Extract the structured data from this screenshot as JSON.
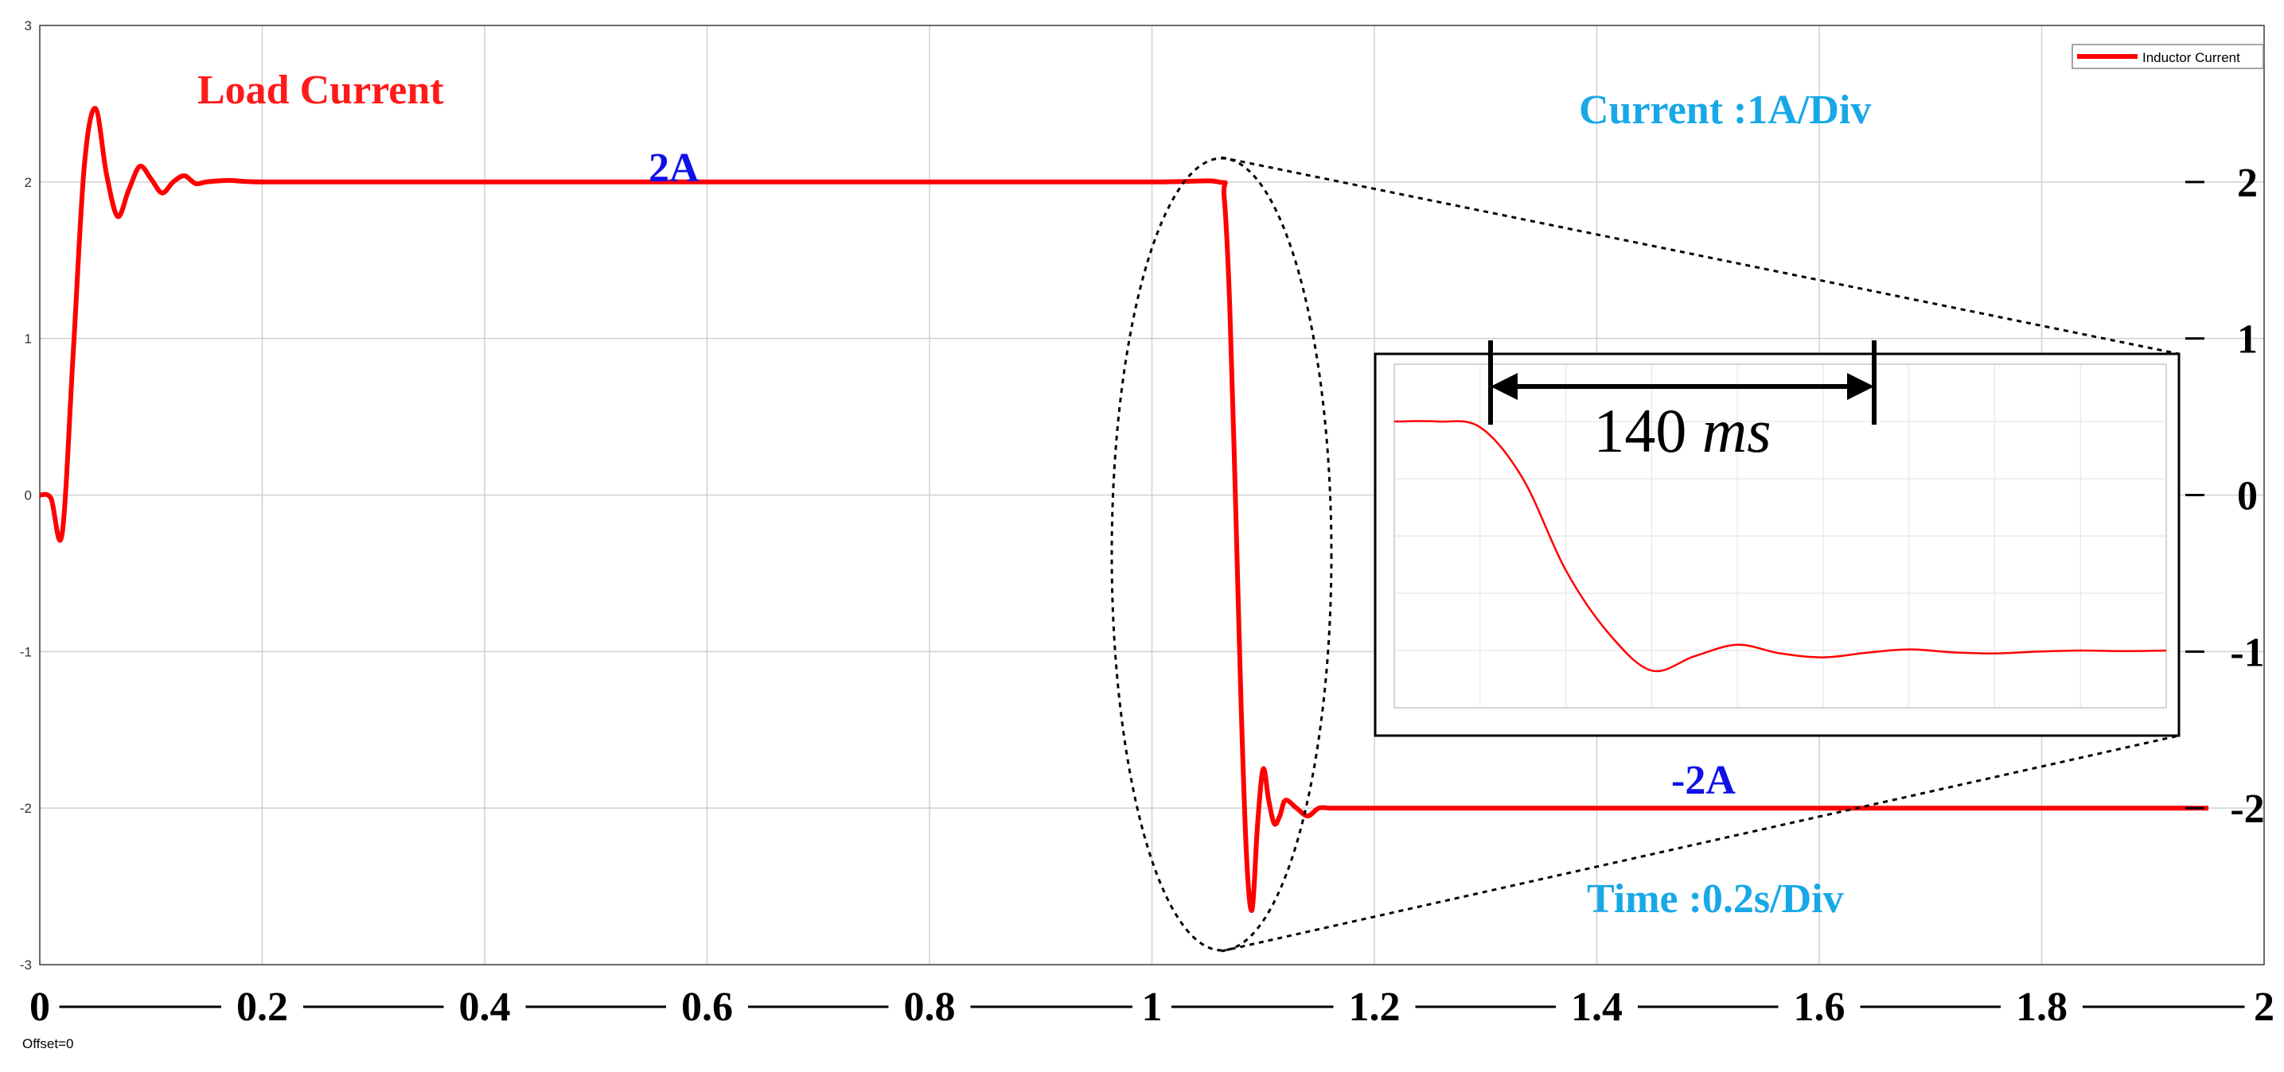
{
  "chart_data": {
    "type": "line",
    "series": [
      {
        "name": "Inductor Current",
        "color": "#ff0000",
        "x": [
          0,
          0.01,
          0.02,
          0.03,
          0.04,
          0.05,
          0.06,
          0.07,
          0.08,
          0.09,
          0.1,
          0.11,
          0.12,
          0.13,
          0.14,
          0.15,
          0.17,
          0.2,
          0.3,
          0.45,
          0.6,
          0.8,
          1.0,
          1.06,
          1.065,
          1.07,
          1.075,
          1.08,
          1.085,
          1.09,
          1.095,
          1.1,
          1.105,
          1.11,
          1.115,
          1.12,
          1.13,
          1.14,
          1.15,
          1.16,
          1.17,
          1.18,
          1.2,
          1.3,
          1.5,
          1.7,
          1.9,
          1.95
        ],
        "y": [
          0,
          -0.02,
          -0.25,
          0.9,
          2.1,
          2.47,
          2.05,
          1.78,
          1.95,
          2.1,
          2.02,
          1.93,
          2.0,
          2.04,
          1.99,
          2.0,
          2.01,
          2.0,
          2.0,
          2.0,
          2.0,
          2.0,
          2.0,
          2.0,
          1.9,
          1.2,
          0.0,
          -1.3,
          -2.3,
          -2.65,
          -2.1,
          -1.75,
          -1.95,
          -2.1,
          -2.05,
          -1.95,
          -2.0,
          -2.05,
          -2.0,
          -2.0,
          -2.0,
          -2.0,
          -2.0,
          -2.0,
          -2.0,
          -2.0,
          -2.0,
          -2.0
        ]
      }
    ],
    "x_ticks": [
      "0",
      "0.2",
      "0.4",
      "0.6",
      "0.8",
      "1",
      "1.2",
      "1.4",
      "1.6",
      "1.8",
      "2"
    ],
    "y_ticks_left": [
      "3",
      "2",
      "1",
      "0",
      "-1",
      "-2",
      "-3"
    ],
    "y_ticks_right": [
      "2",
      "1",
      "0",
      "-1",
      "-2"
    ],
    "xlim": [
      0,
      2
    ],
    "ylim": [
      -3,
      3
    ],
    "grid": true,
    "legend_position": "top-right",
    "legend": [
      "Inductor Current"
    ],
    "annotations": {
      "load_current": "Load Current",
      "current_scale": "Current :1A/Div",
      "time_scale": "Time :0.2s/Div",
      "plus_level": "2A",
      "minus_level": "-2A",
      "offset": "Offset=0"
    },
    "inset": {
      "measurement_value": "140",
      "measurement_unit": "ms",
      "x": [
        1.04,
        1.05,
        1.06,
        1.07,
        1.08,
        1.09,
        1.1,
        1.11,
        1.12,
        1.13,
        1.14,
        1.15,
        1.16,
        1.17,
        1.18,
        1.19,
        1.2,
        1.21,
        1.22
      ],
      "y": [
        2.0,
        2.0,
        1.9,
        1.0,
        -0.6,
        -1.7,
        -2.35,
        -2.1,
        -1.9,
        -2.05,
        -2.12,
        -2.04,
        -1.98,
        -2.03,
        -2.05,
        -2.02,
        -2.0,
        -2.01,
        -2.0
      ],
      "xlim": [
        1.04,
        1.22
      ],
      "ylim": [
        -3,
        3
      ]
    },
    "colors": {
      "trace": "#ff0000",
      "load_label": "#ff1a1a",
      "level_labels": "#1010e8",
      "scale_labels": "#18a8e8",
      "grid": "#d0d0d0"
    }
  }
}
